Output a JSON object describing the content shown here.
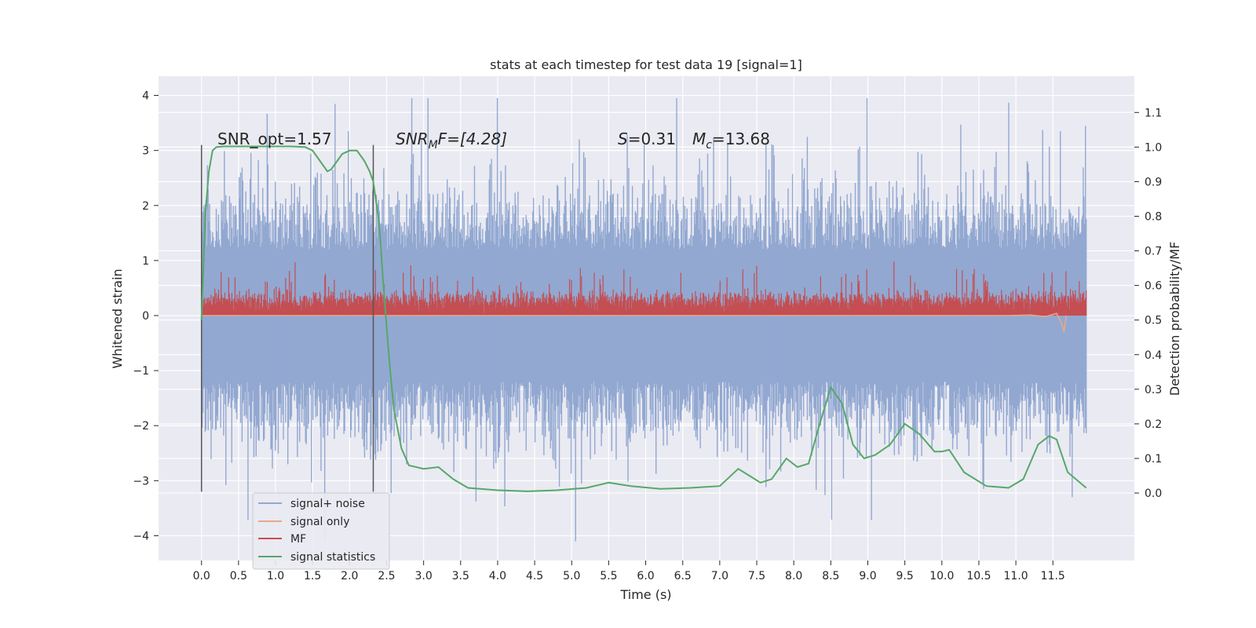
{
  "chart_data": {
    "type": "line",
    "title": "stats at each timestep for test data 19 [signal=1]",
    "xlabel": "Time (s)",
    "ylabel": "Whitened strain",
    "y2label": "Detection probability/MF",
    "xlim": [
      -0.58,
      12.6
    ],
    "ylim": [
      -4.45,
      4.35
    ],
    "y2lim": [
      -0.195,
      1.205
    ],
    "xticks": [
      "0.0",
      "0.5",
      "1.0",
      "1.5",
      "2.0",
      "2.5",
      "3.0",
      "3.5",
      "4.0",
      "4.5",
      "5.0",
      "5.5",
      "6.0",
      "6.5",
      "7.0",
      "7.5",
      "8.0",
      "8.5",
      "9.0",
      "9.5",
      "10.0",
      "10.5",
      "11.0",
      "11.5"
    ],
    "yticks": [
      -4,
      -3,
      -2,
      -1,
      0,
      1,
      2,
      3,
      4
    ],
    "y2ticks": [
      "0.0",
      "0.1",
      "0.2",
      "0.3",
      "0.4",
      "0.5",
      "0.6",
      "0.7",
      "0.8",
      "0.9",
      "1.0",
      "1.1"
    ],
    "grid": true,
    "legend_position": "lower-left",
    "vlines": [
      0.0,
      2.32
    ],
    "annotations": {
      "snr_opt": "SNR_opt=1.57",
      "snr_mf_prefix": "SNR",
      "snr_mf_sub": "M",
      "snr_mf_suffix": "F=[4.28]",
      "s_var": "S",
      "s_val": "=0.31",
      "mc_var": "M",
      "mc_sub": "c",
      "mc_val": "=13.68"
    },
    "series": [
      {
        "name": "signal+ noise",
        "color": "#92a8d1",
        "envelope": "noise band approx. -2.4 to +2.4 with spikes to about -4.1 and +4.0 over 0.0–11.95 s"
      },
      {
        "name": "signal only",
        "color": "#e8a88a",
        "x": [
          10.9,
          11.2,
          11.4,
          11.55,
          11.62,
          11.65,
          11.68
        ],
        "y": [
          0.0,
          0.01,
          -0.02,
          0.04,
          -0.15,
          -0.3,
          0.0
        ]
      },
      {
        "name": "MF",
        "color": "#c44e52",
        "envelope": "values approx. 0.0 to 0.6 with peaks near 0.98 over 0.0–11.95 s"
      },
      {
        "name": "signal statistics",
        "color": "#55a868",
        "x": [
          0.0,
          0.05,
          0.1,
          0.15,
          0.2,
          0.3,
          0.5,
          0.8,
          1.0,
          1.2,
          1.4,
          1.5,
          1.6,
          1.7,
          1.75,
          1.8,
          1.9,
          2.0,
          2.1,
          2.2,
          2.27,
          2.32,
          2.4,
          2.45,
          2.5,
          2.55,
          2.6,
          2.7,
          2.8,
          3.0,
          3.2,
          3.4,
          3.6,
          4.0,
          4.4,
          4.8,
          5.2,
          5.5,
          5.8,
          6.2,
          6.6,
          7.0,
          7.25,
          7.4,
          7.55,
          7.7,
          7.9,
          8.05,
          8.2,
          8.35,
          8.5,
          8.65,
          8.8,
          8.95,
          9.1,
          9.3,
          9.5,
          9.7,
          9.9,
          10.0,
          10.1,
          10.3,
          10.6,
          10.9,
          11.1,
          11.3,
          11.45,
          11.55,
          11.7,
          11.95
        ],
        "y": [
          0.5,
          0.8,
          0.93,
          0.99,
          1.0,
          1.002,
          1.002,
          1.002,
          1.002,
          1.002,
          1.0,
          0.99,
          0.96,
          0.93,
          0.935,
          0.95,
          0.98,
          0.99,
          0.99,
          0.96,
          0.93,
          0.9,
          0.78,
          0.62,
          0.48,
          0.35,
          0.24,
          0.13,
          0.08,
          0.07,
          0.075,
          0.04,
          0.015,
          0.008,
          0.005,
          0.008,
          0.015,
          0.03,
          0.02,
          0.012,
          0.015,
          0.02,
          0.07,
          0.05,
          0.03,
          0.04,
          0.1,
          0.075,
          0.085,
          0.2,
          0.305,
          0.26,
          0.14,
          0.1,
          0.11,
          0.14,
          0.2,
          0.17,
          0.12,
          0.12,
          0.125,
          0.06,
          0.02,
          0.015,
          0.04,
          0.14,
          0.165,
          0.155,
          0.06,
          0.015
        ]
      }
    ]
  }
}
